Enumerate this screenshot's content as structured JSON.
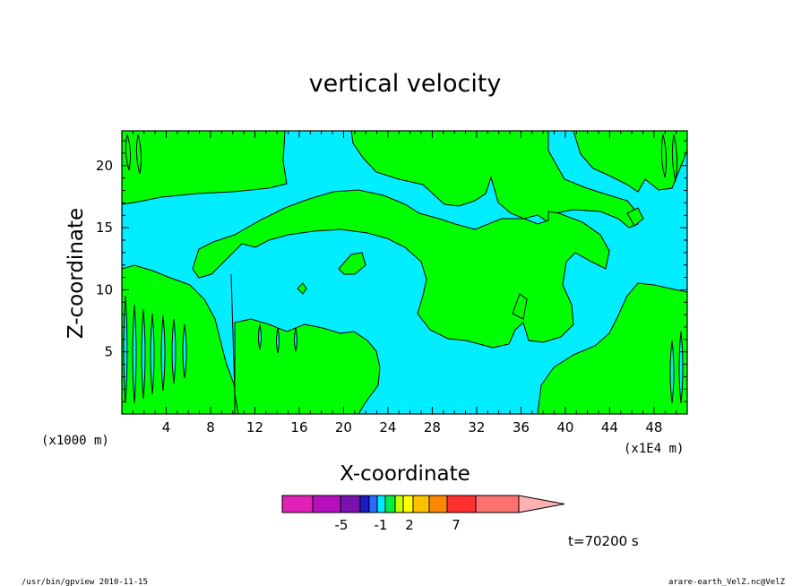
{
  "chart_data": {
    "type": "heatmap",
    "title": "vertical velocity",
    "xlabel": "X-coordinate",
    "ylabel": "Z-coordinate",
    "x_unit": "(x1E4 m)",
    "y_unit": "(x1000 m)",
    "xlim": [
      0,
      51
    ],
    "ylim": [
      0,
      22.8
    ],
    "x_ticks": [
      4,
      8,
      12,
      16,
      20,
      24,
      28,
      32,
      36,
      40,
      44,
      48
    ],
    "y_ticks": [
      5,
      10,
      15,
      20
    ],
    "colorbar": {
      "tick_labels": [
        "-5",
        "-1",
        "2",
        "7"
      ],
      "colors": [
        "#e020b8",
        "#b80fbe",
        "#7a12b0",
        "#1a1ac8",
        "#2a6aff",
        "#00e8ff",
        "#00ee44",
        "#c8ff00",
        "#ffff00",
        "#ffc000",
        "#ff8800",
        "#ff3030",
        "#ff7070",
        "#ffb0b0"
      ]
    },
    "fields": {
      "positive_color": "#00ff00",
      "negative_color": "#00eeff",
      "contour_color": "#000000"
    },
    "annotation": "t=70200 s"
  },
  "footer": {
    "left": "/usr/bin/gpview 2010-11-15",
    "right": "arare-earth_VelZ.nc@VelZ"
  }
}
